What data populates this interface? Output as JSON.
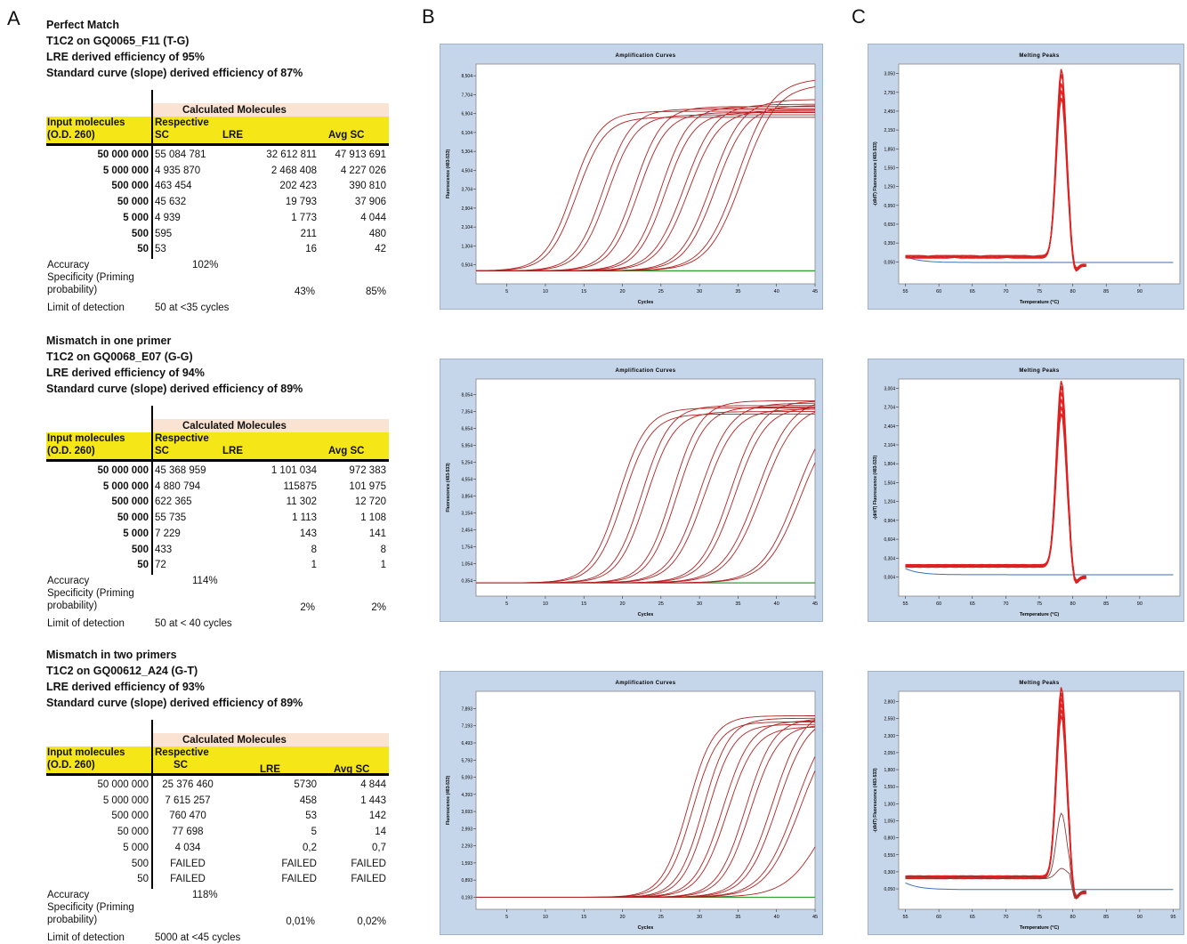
{
  "panels": {
    "A": "A",
    "B": "B",
    "C": "C"
  },
  "sections": [
    {
      "headings": [
        "Perfect Match",
        "T1C2 on GQ0065_F11 (T-G)",
        "LRE derived efficiency of 95%",
        "Standard curve (slope) derived efficiency  of 87%"
      ],
      "calc_header": "Calculated Molecules",
      "input_header_1": "Input  molecules",
      "input_header_2": "(O.D. 260)",
      "respective_label": "Respective",
      "col_sc": "SC",
      "col_lre": "LRE",
      "col_avg": "Avg SC",
      "rows": [
        {
          "input": "50 000 000",
          "sc": "55 084 781",
          "lre": "32 612 811",
          "avg": "47 913 691"
        },
        {
          "input": "5 000 000",
          "sc": "4 935 870",
          "lre": "2 468 408",
          "avg": "4 227 026"
        },
        {
          "input": "500 000",
          "sc": "463 454",
          "lre": "202 423",
          "avg": "390 810"
        },
        {
          "input": "50 000",
          "sc": "45 632",
          "lre": "19 793",
          "avg": "37 906"
        },
        {
          "input": "5 000",
          "sc": "4 939",
          "lre": "1 773",
          "avg": "4 044"
        },
        {
          "input": "500",
          "sc": "595",
          "lre": "211",
          "avg": "480"
        },
        {
          "input": "50",
          "sc": "53",
          "lre": "16",
          "avg": "42"
        }
      ],
      "accuracy_label": "Accuracy",
      "accuracy_value": "102%",
      "spec_label_1": "Specificity (Priming",
      "spec_label_2": "probability)",
      "spec_lre": "43%",
      "spec_avg": "85%",
      "lod_label": "Limit of detection",
      "lod_value": "50 at <35 cycles"
    },
    {
      "headings": [
        "Mismatch in one primer",
        "T1C2 on GQ0068_E07 (G-G)",
        "LRE derived efficiency of 94%",
        "Standard curve (slope) derived efficiency  of 89%"
      ],
      "calc_header": "Calculated Molecules",
      "input_header_1": "Input  molecules",
      "input_header_2": "(O.D. 260)",
      "respective_label": "Respective",
      "col_sc": "SC",
      "col_lre": "LRE",
      "col_avg": "Avg SC",
      "rows": [
        {
          "input": "50 000 000",
          "sc": "45 368 959",
          "lre": "1 101 034",
          "avg": "972 383"
        },
        {
          "input": "5 000 000",
          "sc": "4 880 794",
          "lre": "115875",
          "avg": "101 975"
        },
        {
          "input": "500 000",
          "sc": "622 365",
          "lre": "11 302",
          "avg": "12 720"
        },
        {
          "input": "50 000",
          "sc": "55 735",
          "lre": "1 113",
          "avg": "1 108"
        },
        {
          "input": "5 000",
          "sc": "7 229",
          "lre": "143",
          "avg": "141"
        },
        {
          "input": "500",
          "sc": "433",
          "lre": "8",
          "avg": "8"
        },
        {
          "input": "50",
          "sc": "72",
          "lre": "1",
          "avg": "1"
        }
      ],
      "accuracy_label": "Accuracy",
      "accuracy_value": "114%",
      "spec_label_1": "Specificity (Priming",
      "spec_label_2": "probability)",
      "spec_lre": "2%",
      "spec_avg": "2%",
      "lod_label": "Limit of detection",
      "lod_value": "50 at < 40 cycles"
    },
    {
      "headings": [
        "Mismatch in two primers",
        "T1C2 on GQ00612_A24 (G-T)",
        "LRE derived efficiency of 93%",
        "Standard curve (slope) derived efficiency  of 89%"
      ],
      "calc_header": "Calculated Molecules",
      "input_header_1": "Input  molecules",
      "input_header_2": "(O.D. 260)",
      "respective_label": "Respective",
      "col_sc": "SC",
      "col_lre": "LRE",
      "col_avg": "Avg SC",
      "rows": [
        {
          "input": "50 000 000",
          "sc": "25 376 460",
          "lre": "5730",
          "avg": "4 844"
        },
        {
          "input": "5 000 000",
          "sc": "7 615 257",
          "lre": "458",
          "avg": "1 443"
        },
        {
          "input": "500 000",
          "sc": "760 470",
          "lre": "53",
          "avg": "142"
        },
        {
          "input": "50 000",
          "sc": "77 698",
          "lre": "5",
          "avg": "14"
        },
        {
          "input": "5 000",
          "sc": "4 034",
          "lre": "0,2",
          "avg": "0,7"
        },
        {
          "input": "500",
          "sc": "FAILED",
          "lre": "FAILED",
          "avg": "FAILED"
        },
        {
          "input": "50",
          "sc": "FAILED",
          "lre": "FAILED",
          "avg": "FAILED"
        }
      ],
      "accuracy_label": "Accuracy",
      "accuracy_value": "118%",
      "spec_label_1": "Specificity (Priming",
      "spec_label_2": "probability)",
      "spec_lre": "0,01%",
      "spec_avg": "0,02%",
      "lod_label": "Limit of detection",
      "lod_value": "5000 at <45 cycles"
    }
  ],
  "colors": {
    "curve": "#b22222",
    "melt": "#e02020",
    "baseline_green": "#2ca02c",
    "baseline_blue": "#3b6fb6",
    "chart_bg": "#c6d6ea",
    "yellow": "#f5e618",
    "peach": "#fbe3d3"
  },
  "chart_data": [
    {
      "type": "line",
      "title": "Amplification Curves",
      "xlabel": "Cycles",
      "ylabel": "Fluorescence (483-533)",
      "x_ticks": [
        "5",
        "10",
        "15",
        "20",
        "25",
        "30",
        "35",
        "40",
        "45"
      ],
      "xlim": [
        1,
        45
      ],
      "y_ticks": [
        "0,504",
        "1,304",
        "2,104",
        "2,904",
        "3,704",
        "4,504",
        "5,304",
        "6,104",
        "6,904",
        "7,704",
        "8,504"
      ],
      "ylim": [
        -0.3,
        9.0
      ],
      "curves": [
        {
          "mid": 13.5,
          "plateau": 7.0,
          "k": 0.55,
          "count": 2
        },
        {
          "mid": 17.5,
          "plateau": 7.1,
          "k": 0.55,
          "count": 2
        },
        {
          "mid": 21.5,
          "plateau": 7.2,
          "k": 0.55,
          "count": 2
        },
        {
          "mid": 25.0,
          "plateau": 7.2,
          "k": 0.55,
          "count": 2
        },
        {
          "mid": 28.0,
          "plateau": 7.3,
          "k": 0.5,
          "count": 2
        },
        {
          "mid": 31.5,
          "plateau": 7.5,
          "k": 0.5,
          "count": 2
        },
        {
          "mid": 35.0,
          "plateau": 8.4,
          "k": 0.45,
          "count": 2
        }
      ],
      "baseline": 0.25
    },
    {
      "type": "line",
      "title": "Melting Peaks",
      "xlabel": "Temperature (°C)",
      "ylabel": "-(d/dT) Fluorescence (483-533)",
      "x_ticks": [
        "55",
        "60",
        "65",
        "70",
        "75",
        "80",
        "85",
        "90"
      ],
      "xlim": [
        54,
        96
      ],
      "y_ticks": [
        "0,050",
        "0,350",
        "0,650",
        "0,950",
        "1,250",
        "1,550",
        "1,850",
        "2,150",
        "2,450",
        "2,750",
        "3,050"
      ],
      "ylim": [
        -0.3,
        3.2
      ],
      "peak_temp": 78.3,
      "peak_heights": [
        3.0,
        2.9,
        2.75,
        2.65,
        2.55
      ],
      "shoulder": 0.13
    },
    {
      "type": "line",
      "title": "Amplification Curves",
      "xlabel": "Cycles",
      "ylabel": "Fluorescence (483-533)",
      "x_ticks": [
        "5",
        "10",
        "15",
        "20",
        "25",
        "30",
        "35",
        "40",
        "45"
      ],
      "xlim": [
        1,
        45
      ],
      "y_ticks": [
        "0,354",
        "1,054",
        "1,754",
        "2,454",
        "3,154",
        "3,854",
        "4,554",
        "5,254",
        "5,954",
        "6,654",
        "7,354",
        "8,054"
      ],
      "ylim": [
        -0.3,
        8.7
      ],
      "curves": [
        {
          "mid": 19.5,
          "plateau": 7.5,
          "k": 0.55,
          "count": 2
        },
        {
          "mid": 22.5,
          "plateau": 7.6,
          "k": 0.55,
          "count": 2
        },
        {
          "mid": 26.5,
          "plateau": 7.8,
          "k": 0.55,
          "count": 2
        },
        {
          "mid": 30.0,
          "plateau": 7.7,
          "k": 0.5,
          "count": 2
        },
        {
          "mid": 34.0,
          "plateau": 7.8,
          "k": 0.5,
          "count": 2
        },
        {
          "mid": 37.5,
          "plateau": 7.9,
          "k": 0.45,
          "count": 2
        },
        {
          "mid": 42.5,
          "plateau": 7.6,
          "k": 0.45,
          "count": 2
        }
      ],
      "baseline": 0.25
    },
    {
      "type": "line",
      "title": "Melting Peaks",
      "xlabel": "Temperature (°C)",
      "ylabel": "-(d/dT) Fluorescence (483-533)",
      "x_ticks": [
        "55",
        "60",
        "65",
        "70",
        "75",
        "80",
        "85",
        "90"
      ],
      "xlim": [
        54,
        96
      ],
      "y_ticks": [
        "0,004",
        "0,304",
        "0,604",
        "0,904",
        "1,204",
        "1,504",
        "1,804",
        "2,104",
        "2,404",
        "2,704",
        "3,004"
      ],
      "ylim": [
        -0.3,
        3.15
      ],
      "peak_temp": 78.3,
      "peak_heights": [
        2.95,
        2.85,
        2.75,
        2.65,
        2.55,
        2.45
      ],
      "shoulder": 0.18
    },
    {
      "type": "line",
      "title": "Amplification Curves",
      "xlabel": "Cycles",
      "ylabel": "Fluorescence (483-533)",
      "x_ticks": [
        "5",
        "10",
        "15",
        "20",
        "25",
        "30",
        "35",
        "40",
        "45"
      ],
      "xlim": [
        1,
        45
      ],
      "y_ticks": [
        "0,193",
        "0,893",
        "1,593",
        "2,293",
        "2,993",
        "3,693",
        "4,393",
        "5,093",
        "5,793",
        "6,493",
        "7,193",
        "7,893"
      ],
      "ylim": [
        -0.3,
        8.6
      ],
      "curves": [
        {
          "mid": 28.5,
          "plateau": 7.6,
          "k": 0.6,
          "count": 2
        },
        {
          "mid": 30.5,
          "plateau": 7.5,
          "k": 0.6,
          "count": 2
        },
        {
          "mid": 33.0,
          "plateau": 7.4,
          "k": 0.55,
          "count": 2
        },
        {
          "mid": 36.0,
          "plateau": 7.5,
          "k": 0.55,
          "count": 2
        },
        {
          "mid": 39.5,
          "plateau": 7.9,
          "k": 0.5,
          "count": 2
        },
        {
          "mid": 42.5,
          "plateau": 7.8,
          "k": 0.45,
          "count": 2
        },
        {
          "mid": 46.5,
          "plateau": 6.0,
          "k": 0.4,
          "count": 1
        }
      ],
      "baseline": 0.193
    },
    {
      "type": "line",
      "title": "Melting Peaks",
      "xlabel": "Temperature (°C)",
      "ylabel": "-(d/dT) Fluorescence (483-533)",
      "x_ticks": [
        "55",
        "60",
        "65",
        "70",
        "75",
        "80",
        "85",
        "90",
        "95"
      ],
      "xlim": [
        54,
        96
      ],
      "y_ticks": [
        "0,050",
        "0,300",
        "0,550",
        "0,800",
        "1,050",
        "1,300",
        "1,550",
        "1,800",
        "2,050",
        "2,300",
        "2,550",
        "2,800"
      ],
      "ylim": [
        -0.25,
        2.95
      ],
      "peak_temp": 78.3,
      "peak_heights": [
        2.8,
        2.7,
        2.62,
        2.55,
        2.48,
        2.4,
        0.95,
        0.12
      ],
      "shoulder": 0.22
    }
  ]
}
